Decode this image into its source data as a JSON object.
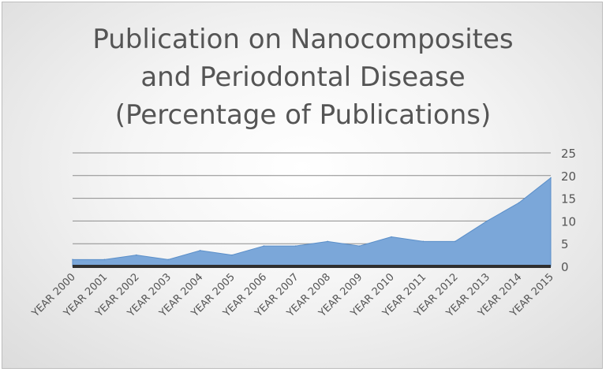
{
  "chart_data": {
    "type": "area",
    "title_lines": [
      "Publication on Nanocomposites",
      "and Periodontal Disease",
      "(Percentage of Publications)"
    ],
    "categories": [
      "YEAR 2000",
      "YEAR 2001",
      "YEAR 2002",
      "YEAR 2003",
      "YEAR 2004",
      "YEAR 2005",
      "YEAR 2006",
      "YEAR 2007",
      "YEAR 2008",
      "YEAR 2009",
      "YEAR 2010",
      "YEAR 2011",
      "YEAR 2012",
      "YEAR 2013",
      "YEAR 2014",
      "YEAR 2015"
    ],
    "series": [
      {
        "values": [
          1.5,
          1.5,
          2.5,
          1.5,
          3.5,
          2.5,
          4.5,
          4.5,
          5.5,
          4.5,
          6.5,
          5.5,
          5.5,
          10,
          14,
          19.5
        ]
      }
    ],
    "y_ticks": [
      "0",
      "5",
      "10",
      "15",
      "20",
      "25"
    ],
    "ylim": [
      0,
      25
    ],
    "y_axis_position": "right",
    "grid": true,
    "legend": "none",
    "colors": {
      "area_fill": "#7ba7d9",
      "area_stroke": "#5b8fc9",
      "gridline": "#8c8c8c",
      "text": "#555555"
    }
  }
}
